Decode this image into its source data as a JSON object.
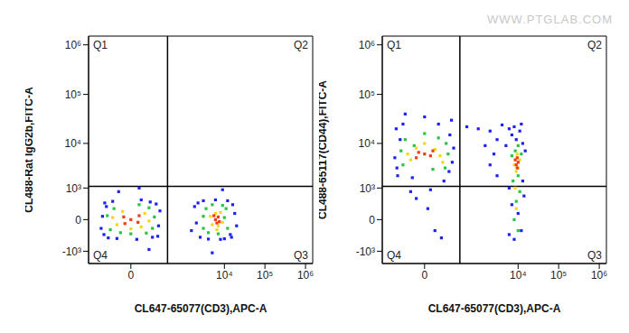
{
  "watermark": "WWW.PTGLAB.COM",
  "chart_data": [
    {
      "type": "scatter",
      "xlabel": "CL647-65077(CD3),APC-A",
      "ylabel": "CL488-Rat IgG2b,FITC-A",
      "log": true,
      "xlim": [
        -500,
        1500000
      ],
      "ylim": [
        -2000,
        1500000
      ],
      "xticks": [
        0,
        {
          "value": 10000,
          "label": "10⁴"
        },
        {
          "value": 100000,
          "label": "10⁵"
        },
        {
          "value": 1000000,
          "label": "10⁶"
        }
      ],
      "yticks": [
        {
          "value": -1000,
          "label": "-10³"
        },
        0,
        {
          "value": 1000,
          "label": "10³"
        },
        {
          "value": 10000,
          "label": "10⁴"
        },
        {
          "value": 100000,
          "label": "10⁵"
        },
        {
          "value": 1000000,
          "label": "10⁶"
        }
      ],
      "gates": {
        "x": 350,
        "y": 1100
      },
      "quadrant_labels": [
        "Q1",
        "Q2",
        "Q3",
        "Q4"
      ],
      "series": [
        {
          "color": "#1e22f0",
          "x": [
            -180,
            -150,
            -200,
            190,
            160,
            120,
            -90,
            -60,
            40,
            210,
            -220,
            100,
            -130,
            20,
            180,
            -170,
            30,
            -50,
            90,
            1500,
            1800,
            2500,
            2200,
            3000,
            14000,
            18000,
            16000,
            20000,
            12000,
            10000,
            4000,
            6000,
            8000,
            2000,
            15000,
            5000,
            9000
          ],
          "y": [
            -300,
            250,
            50,
            -100,
            320,
            -380,
            400,
            -420,
            450,
            150,
            -150,
            380,
            -400,
            -450,
            -350,
            350,
            1000,
            800,
            -900,
            -200,
            250,
            -380,
            350,
            420,
            -300,
            100,
            300,
            -100,
            420,
            -430,
            -440,
            450,
            -450,
            -50,
            -380,
            -1100,
            900
          ]
        },
        {
          "color": "#29c445",
          "x": [
            -110,
            -80,
            120,
            90,
            -140,
            140,
            0,
            30,
            -40,
            70,
            3000,
            3500,
            4000,
            11000,
            12000,
            9000,
            5000,
            7000,
            10000,
            3000
          ],
          "y": [
            -180,
            200,
            -150,
            220,
            60,
            40,
            -280,
            300,
            -250,
            -260,
            -150,
            200,
            -250,
            200,
            -150,
            280,
            300,
            -280,
            30,
            50
          ]
        },
        {
          "color": "#f2d81c",
          "x": [
            -60,
            60,
            -30,
            40,
            -90,
            90,
            0,
            5000,
            6000,
            7000,
            8000,
            4500,
            9000,
            6500
          ],
          "y": [
            -80,
            100,
            140,
            -120,
            30,
            -20,
            -160,
            -80,
            100,
            -100,
            120,
            50,
            -40,
            -180
          ]
        },
        {
          "color": "#f03c14",
          "x": [
            0,
            -25,
            25,
            -20,
            30,
            6000,
            7000,
            6500,
            5500,
            7500
          ],
          "y": [
            0,
            40,
            -40,
            -60,
            60,
            0,
            40,
            -50,
            60,
            -30
          ]
        }
      ]
    },
    {
      "type": "scatter",
      "xlabel": "CL647-65077(CD3),APC-A",
      "ylabel": "CL488-65117(CD44),FITC-A",
      "log": true,
      "xlim": [
        -500,
        1500000
      ],
      "ylim": [
        -2000,
        1500000
      ],
      "xticks": [
        0,
        {
          "value": 10000,
          "label": "10⁴"
        },
        {
          "value": 100000,
          "label": "10⁵"
        },
        {
          "value": 1000000,
          "label": "10⁶"
        }
      ],
      "yticks": [
        {
          "value": -1000,
          "label": "-10³"
        },
        0,
        {
          "value": 1000,
          "label": "10³"
        },
        {
          "value": 10000,
          "label": "10⁴"
        },
        {
          "value": 100000,
          "label": "10⁵"
        },
        {
          "value": 1000000,
          "label": "10⁶"
        }
      ],
      "gates": {
        "x": 320,
        "y": 1100
      },
      "quadrant_labels": [
        "Q1",
        "Q2",
        "Q3",
        "Q4"
      ],
      "series": [
        {
          "color": "#1e22f0",
          "x": [
            -180,
            150,
            -200,
            180,
            -100,
            100,
            -220,
            210,
            -150,
            160,
            0,
            -50,
            60,
            -190,
            190,
            -120,
            -30,
            40,
            10,
            -60,
            80,
            20,
            6000,
            12000,
            8000,
            10000,
            7000,
            14000,
            6000,
            13000,
            9000,
            11000,
            7000,
            13000,
            8000,
            12000,
            3000,
            2500,
            3000,
            2000,
            1000,
            500,
            4000,
            6000,
            1500,
            2000,
            15000,
            5000
          ],
          "y": [
            2000,
            2500,
            20000,
            30000,
            40000,
            1500,
            5000,
            8000,
            12000,
            15000,
            35000,
            1800,
            25000,
            3000,
            4000,
            25000,
            500,
            -200,
            200,
            800,
            -400,
            900,
            -300,
            -200,
            -450,
            100,
            300,
            600,
            1000,
            1500,
            12000,
            18000,
            15000,
            10000,
            22000,
            25000,
            2000,
            6000,
            12000,
            18000,
            20000,
            22000,
            24000,
            20000,
            9000,
            3500,
            7000,
            9000
          ]
        },
        {
          "color": "#29c445",
          "x": [
            -120,
            110,
            -100,
            120,
            -140,
            140,
            0,
            30,
            -40,
            60,
            8000,
            10000,
            9000,
            11000,
            7500,
            10000,
            8500,
            10000,
            7000,
            12000
          ],
          "y": [
            3500,
            3000,
            12000,
            10000,
            7000,
            6000,
            16000,
            2800,
            9000,
            13000,
            0,
            -200,
            400,
            800,
            1500,
            2000,
            7000,
            9000,
            5500,
            6000
          ]
        },
        {
          "color": "#f2d81c",
          "x": [
            -60,
            70,
            -30,
            40,
            -80,
            90,
            0,
            9000,
            10000,
            8000,
            11000,
            9500,
            8500,
            9000
          ],
          "y": [
            4500,
            5500,
            8000,
            7500,
            6000,
            4000,
            10000,
            2500,
            3000,
            3500,
            4500,
            6000,
            1000,
            200
          ]
        },
        {
          "color": "#f03c14",
          "x": [
            0,
            -30,
            30,
            -20,
            20,
            9000,
            10000,
            9500,
            8500,
            9500
          ],
          "y": [
            6000,
            5000,
            7000,
            6500,
            5500,
            3500,
            4000,
            3000,
            4500,
            5000
          ]
        }
      ]
    }
  ]
}
